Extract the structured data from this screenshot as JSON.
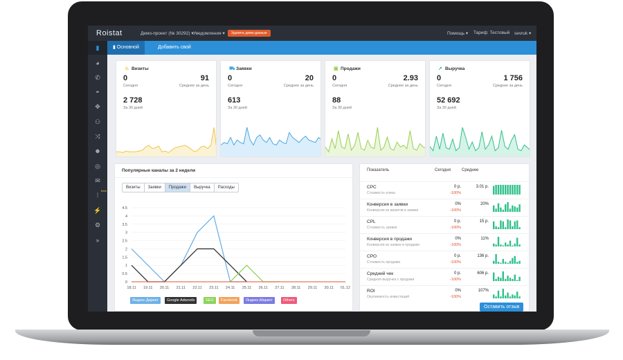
{
  "topbar": {
    "logo": "Roistat",
    "project": "Демо-проект (№ 30292)",
    "notifications": "Уведомления",
    "delete_demo": "Удалить демо-данные",
    "help": "Помощь",
    "tariff": "Тариф: Тестовый",
    "user": "sevruk"
  },
  "sidebar": {
    "icons": [
      "bar-chart-icon",
      "pie-chart-icon",
      "phone-icon",
      "dashboard-icon",
      "crosshair-icon",
      "sitemap-icon",
      "shuffle-icon",
      "users-icon",
      "target-icon",
      "mail-icon",
      "grid-beta-icon",
      "plug-icon",
      "gear-icon",
      "expand-icon"
    ],
    "beta": "beta",
    "expand_glyph": "»"
  },
  "tabs": {
    "main": "Основной",
    "add": "Добавить свой"
  },
  "cards": [
    {
      "title": "Визиты",
      "icon": "lamp-icon",
      "today": "0",
      "today_label": "Сегодня",
      "avg": "91",
      "avg_label": "Среднее за день",
      "total": "2 728",
      "total_label": "За 30 дней",
      "color": "#f3c34a",
      "fill": "#fbf3d6",
      "spark": [
        4,
        4,
        3,
        5,
        4,
        4,
        4,
        5,
        6,
        10,
        12,
        8,
        9,
        11,
        4,
        5,
        3,
        6,
        9,
        10,
        11,
        12,
        10,
        7,
        4,
        6,
        10,
        11,
        8,
        12,
        34,
        0
      ]
    },
    {
      "title": "Заявки",
      "icon": "cart-icon",
      "today": "0",
      "today_label": "Сегодня",
      "avg": "20",
      "avg_label": "Среднее за день",
      "total": "613",
      "total_label": "За 30 дней",
      "color": "#4aa8e0",
      "fill": "#dbeefb",
      "spark": [
        8,
        10,
        9,
        14,
        8,
        12,
        10,
        9,
        22,
        12,
        8,
        14,
        16,
        12,
        10,
        14,
        9,
        8,
        12,
        10,
        9,
        18,
        14,
        12,
        10,
        13,
        15,
        12,
        11,
        10,
        14,
        12
      ]
    },
    {
      "title": "Продажи",
      "icon": "bag-icon",
      "today": "0",
      "today_label": "Сегодня",
      "avg": "2.93",
      "avg_label": "Среднее за день",
      "total": "88",
      "total_label": "За 30 дней",
      "color": "#9bcf52",
      "fill": "#ebf6dc",
      "spark": [
        10,
        4,
        20,
        8,
        30,
        10,
        8,
        26,
        6,
        12,
        28,
        8,
        6,
        18,
        10,
        8,
        34,
        6,
        10,
        22,
        8,
        6,
        16,
        10,
        12,
        8,
        30,
        8,
        6,
        14,
        10,
        8
      ]
    },
    {
      "title": "Выручка",
      "icon": "chart-line-icon",
      "today": "0",
      "today_label": "Сегодня",
      "avg": "1 756",
      "avg_label": "Среднее за день",
      "total": "52 692",
      "total_label": "За 30 дней",
      "color": "#2fc08a",
      "fill": "#d6f3e8",
      "spark": [
        12,
        6,
        26,
        8,
        30,
        10,
        8,
        22,
        6,
        10,
        38,
        24,
        8,
        18,
        6,
        10,
        32,
        8,
        14,
        26,
        6,
        10,
        34,
        12,
        8,
        20,
        28,
        8,
        6,
        14,
        10,
        6
      ]
    }
  ],
  "channels_panel": {
    "title": "Популярные каналы за 2 недели",
    "segments": [
      "Визиты",
      "Заявки",
      "Продажи",
      "Выручка",
      "Расходы"
    ],
    "active_segment": "Продажи"
  },
  "chart_data": {
    "type": "line",
    "categories": [
      "18.11",
      "19.11",
      "20.11",
      "21.11",
      "22.11",
      "23.11",
      "24.11",
      "25.11",
      "26.11",
      "27.11",
      "28.11",
      "29.11",
      "30.11",
      "01.12"
    ],
    "ylim": [
      0,
      4.5
    ],
    "yticks": [
      "4.5",
      "4",
      "3.5",
      "3",
      "2.5",
      "2",
      "1.5",
      "1",
      "0.5",
      "0"
    ],
    "series": [
      {
        "name": "Яндекс.Директ",
        "color": "#6fb1e6",
        "values": [
          2,
          1,
          0,
          1,
          3,
          4,
          0,
          0,
          0,
          0,
          0,
          0,
          0,
          0
        ]
      },
      {
        "name": "Google Adwords",
        "color": "#333333",
        "values": [
          1,
          0,
          0,
          1,
          2,
          2,
          1,
          0,
          0,
          0,
          0,
          0,
          0,
          0
        ]
      },
      {
        "name": "SEO",
        "color": "#8ed35c",
        "values": [
          0,
          0,
          0,
          0,
          0,
          0,
          0,
          1,
          0,
          0,
          0,
          0,
          0,
          0
        ]
      },
      {
        "name": "Facebook",
        "color": "#f0a35c",
        "values": [
          0,
          0,
          0,
          0,
          0,
          0,
          0,
          0,
          0,
          0,
          0,
          0,
          0,
          0
        ]
      },
      {
        "name": "Яндекс.Маркет",
        "color": "#7c7be0",
        "values": [
          0,
          0,
          0,
          0,
          0,
          0,
          0,
          0,
          0,
          0,
          0,
          0,
          0,
          0
        ]
      },
      {
        "name": "Others",
        "color": "#ee5a7a",
        "values": [
          0,
          0,
          0,
          0,
          0,
          0,
          0,
          0,
          0,
          0,
          0,
          0,
          0,
          0
        ]
      }
    ],
    "grid": true
  },
  "metrics": {
    "headers": {
      "name": "Показатель",
      "today": "Сегодня",
      "avg": "Среднее"
    },
    "rows": [
      {
        "name": "CPC",
        "desc": "Стоимость клика",
        "today": "0 р.",
        "pct": "-100%",
        "avg": "3.01 р.",
        "bars": [
          8,
          9,
          9,
          9,
          9,
          9,
          9,
          9,
          9,
          9,
          9,
          9
        ]
      },
      {
        "name": "Конверсия в заявки",
        "desc": "Конверсия из визитов в заявки",
        "today": "0%",
        "pct": "-100%",
        "avg": "20%",
        "bars": [
          6,
          3,
          8,
          4,
          2,
          7,
          9,
          3,
          6,
          5,
          4,
          7
        ]
      },
      {
        "name": "CPL",
        "desc": "Стоимость заявки",
        "today": "0 р.",
        "pct": "-100%",
        "avg": "15 р.",
        "bars": [
          8,
          3,
          2,
          9,
          8,
          2,
          10,
          9,
          3,
          8,
          9,
          2
        ]
      },
      {
        "name": "Конверсия в продажи",
        "desc": "Конверсия из заявок в продажи",
        "today": "0%",
        "pct": "-100%",
        "avg": "11%",
        "bars": [
          3,
          2,
          10,
          2,
          1,
          4,
          2,
          6,
          1,
          3,
          9,
          2
        ]
      },
      {
        "name": "CPO",
        "desc": "Стоимость продажи",
        "today": "0 р.",
        "pct": "-100%",
        "avg": "136 р.",
        "bars": [
          3,
          10,
          2,
          1,
          5,
          2,
          1,
          3,
          6,
          8,
          2,
          3
        ]
      },
      {
        "name": "Средний чек",
        "desc": "Средняя выручка с продажи",
        "today": "0 р.",
        "pct": "-100%",
        "avg": "606 р.",
        "bars": [
          8,
          2,
          4,
          3,
          9,
          2,
          5,
          3,
          2,
          6,
          1,
          4
        ]
      },
      {
        "name": "ROI",
        "desc": "Окупаемость инвестиций",
        "today": "0%",
        "pct": "-100%",
        "avg": "107%",
        "bars": [
          4,
          2,
          8,
          2,
          10,
          3,
          6,
          2,
          4,
          3,
          7,
          2
        ]
      }
    ]
  },
  "feedback_button": "Оставить отзыв"
}
